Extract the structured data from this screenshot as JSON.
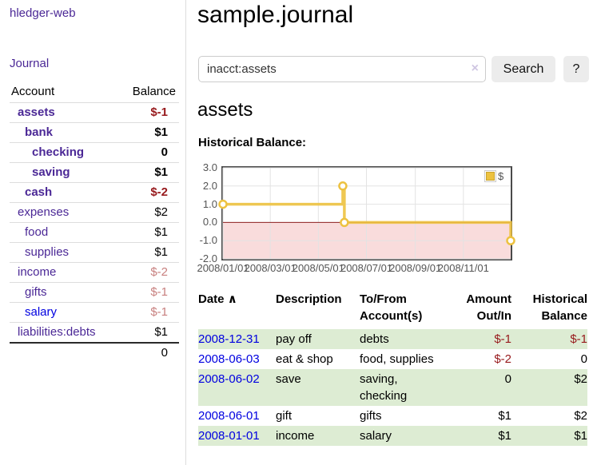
{
  "app_title": "hledger-web",
  "sidebar": {
    "journal_link": "Journal",
    "table": {
      "account_header": "Account",
      "balance_header": "Balance",
      "rows": [
        {
          "name": "assets",
          "balance": "$-1"
        },
        {
          "name": "bank",
          "balance": "$1"
        },
        {
          "name": "checking",
          "balance": "0"
        },
        {
          "name": "saving",
          "balance": "$1"
        },
        {
          "name": "cash",
          "balance": "$-2"
        },
        {
          "name": "expenses",
          "balance": "$2"
        },
        {
          "name": "food",
          "balance": "$1"
        },
        {
          "name": "supplies",
          "balance": "$1"
        },
        {
          "name": "income",
          "balance": "$-2"
        },
        {
          "name": "gifts",
          "balance": "$-1"
        },
        {
          "name": "salary",
          "balance": "$-1"
        },
        {
          "name": "liabilities:debts",
          "balance": "$1"
        }
      ],
      "total": "0"
    }
  },
  "header": {
    "title": "sample.journal"
  },
  "search": {
    "value": "inacct:assets",
    "clear_icon": "×",
    "search_button": "Search",
    "help_button": "?"
  },
  "account_page": {
    "heading": "assets",
    "chart_title": "Historical Balance:"
  },
  "chart_data": {
    "type": "line",
    "step": true,
    "title": "Historical Balance",
    "series": [
      {
        "name": "$",
        "color": "#edc240",
        "points": [
          [
            "2008/01/01",
            1.0
          ],
          [
            "2008/06/01",
            2.0
          ],
          [
            "2008/06/03",
            0.0
          ],
          [
            "2008/12/31",
            -1.0
          ]
        ]
      }
    ],
    "xrange": [
      "2008/01/01",
      "2008/12/31"
    ],
    "ylim": [
      -2.0,
      3.0
    ],
    "yticks": [
      "3.0",
      "2.0",
      "1.0",
      "0.0",
      "-1.0",
      "-2.0"
    ],
    "ytick_values": [
      3,
      2,
      1,
      0,
      -1,
      -2
    ],
    "xticks": [
      "2008/01/01",
      "2008/03/01",
      "2008/05/01",
      "2008/07/01",
      "2008/09/01",
      "2008/11/01"
    ],
    "legend": {
      "label": "$",
      "position": "top-right"
    },
    "grid": true,
    "negative_region": {
      "from": 0,
      "to": -2,
      "color": "#f9dcdc"
    },
    "zero_line_color": "#8e1f1f"
  },
  "register": {
    "headers": {
      "date": "Date",
      "sort_indicator": "∧",
      "description": "Description",
      "accounts_line1": "To/From",
      "accounts_line2": "Account(s)",
      "amount_line1": "Amount",
      "amount_line2": "Out/In",
      "balance_line1": "Historical",
      "balance_line2": "Balance"
    },
    "rows": [
      {
        "date": "2008-12-31",
        "description": "pay off",
        "accounts": "debts",
        "amount": "$-1",
        "balance": "$-1"
      },
      {
        "date": "2008-06-03",
        "description": "eat & shop",
        "accounts": "food, supplies",
        "amount": "$-2",
        "balance": "0"
      },
      {
        "date": "2008-06-02",
        "description": "save",
        "accounts": "saving, checking",
        "amount": "0",
        "balance": "$2"
      },
      {
        "date": "2008-06-01",
        "description": "gift",
        "accounts": "gifts",
        "amount": "$1",
        "balance": "$2"
      },
      {
        "date": "2008-01-01",
        "description": "income",
        "accounts": "salary",
        "amount": "$1",
        "balance": "$1"
      }
    ]
  },
  "colors": {
    "link_purple": "#4b2896",
    "link_blue": "#0000e0",
    "negative_strong": "#97191c",
    "negative_soft": "#c8807f",
    "row_green": "#ddecd3",
    "series_yellow": "#edc240",
    "chart_negative_bg": "#f9dcdc",
    "zero_line": "#8e1f1f"
  }
}
